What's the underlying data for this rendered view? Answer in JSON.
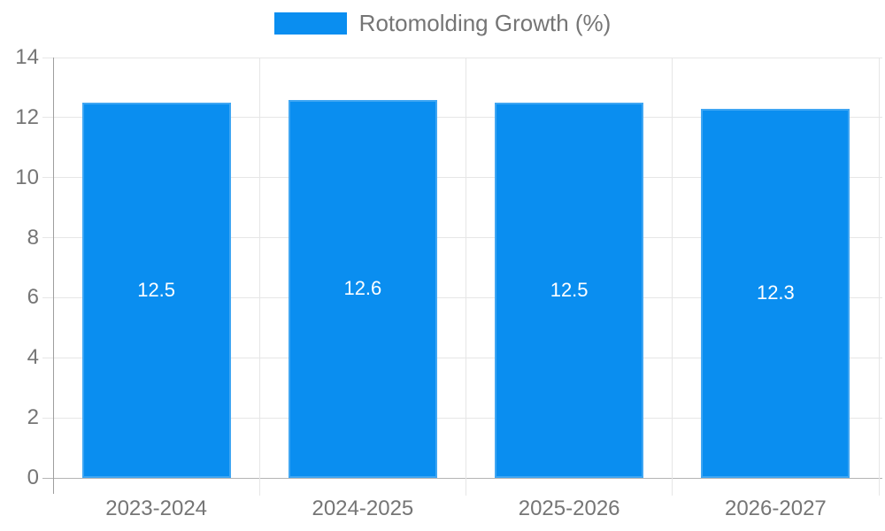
{
  "chart_data": {
    "type": "bar",
    "title": "",
    "legend": {
      "position": "top",
      "label": "Rotomolding Growth (%)"
    },
    "categories": [
      "2023-2024",
      "2024-2025",
      "2025-2026",
      "2026-2027"
    ],
    "values": [
      12.5,
      12.6,
      12.5,
      12.3
    ],
    "value_labels": [
      "12.5",
      "12.6",
      "12.5",
      "12.3"
    ],
    "xlabel": "",
    "ylabel": "",
    "ylim": [
      0,
      14
    ],
    "yticks": [
      0,
      2,
      4,
      6,
      8,
      10,
      12,
      14
    ],
    "grid": true,
    "colors": {
      "bar": "#0A8EF0",
      "bar_value_text": "#FFFFFF",
      "axis_text": "#757575",
      "legend_text": "#757575",
      "gridline": "#E6E6E6",
      "axis_line": "#B3B3B3"
    }
  }
}
